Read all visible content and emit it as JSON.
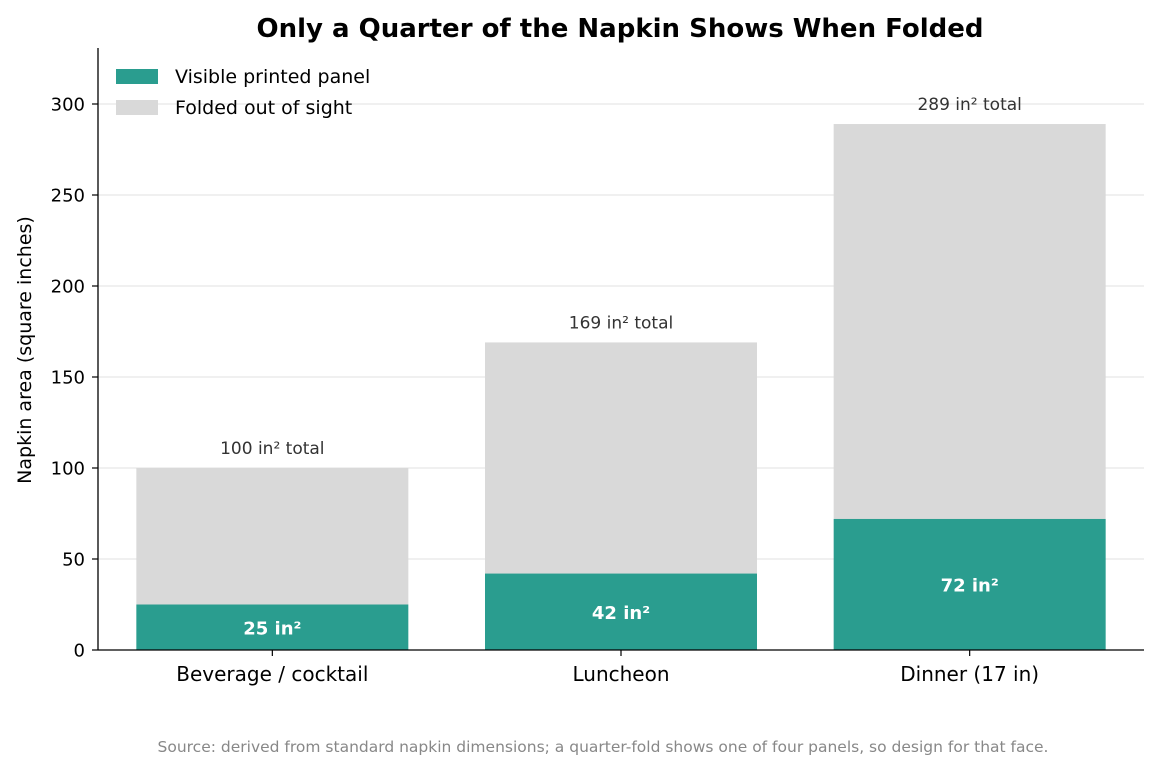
{
  "chart_data": {
    "type": "bar",
    "stacked": true,
    "title": "Only a Quarter of the Napkin Shows When Folded",
    "xlabel": "",
    "ylabel": "Napkin area (square inches)",
    "ylim": [
      0,
      330
    ],
    "yticks": [
      0,
      50,
      100,
      150,
      200,
      250,
      300
    ],
    "grid": "horizontal",
    "legend_position": "top-left",
    "categories": [
      "Beverage / cocktail",
      "Luncheon",
      "Dinner (17 in)"
    ],
    "series": [
      {
        "name": "Visible printed panel",
        "color": "#2a9d8f",
        "values": [
          25,
          42,
          72
        ]
      },
      {
        "name": "Folded out of sight",
        "color": "#d9d9d9",
        "values": [
          75,
          127,
          217
        ]
      }
    ],
    "totals": [
      100,
      169,
      289
    ],
    "total_labels": [
      "100 in² total",
      "169 in² total",
      "289 in² total"
    ],
    "visible_labels": [
      "25 in²",
      "42 in²",
      "72 in²"
    ],
    "source": "Source: derived from standard napkin dimensions; a quarter-fold shows one of four panels, so design for that face."
  }
}
